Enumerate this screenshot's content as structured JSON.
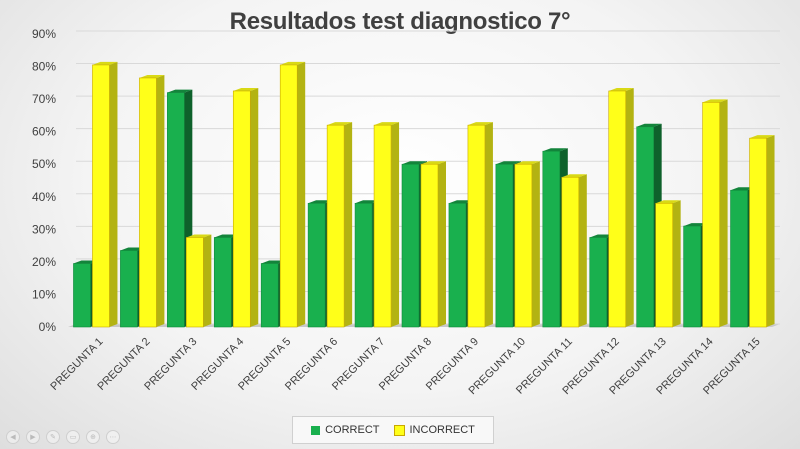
{
  "chart_data": {
    "type": "bar",
    "title": "Resultados test diagnostico 7°",
    "categories": [
      "PREGUNTA 1",
      "PREGUNTA 2",
      "PREGUNTA 3",
      "PREGUNTA 4",
      "PREGUNTA 5",
      "PREGUNTA 6",
      "PREGUNTA 7",
      "PREGUNTA 8",
      "PREGUNTA 9",
      "PREGUNTA 10",
      "PREGUNTA 11",
      "PREGUNTA 12",
      "PREGUNTA 13",
      "PREGUNTA 14",
      "PREGUNTA 15"
    ],
    "series": [
      {
        "name": "CORRECT",
        "color": "#19b04e",
        "values": [
          19.5,
          23.5,
          72,
          27.5,
          19.5,
          38,
          38,
          50,
          38,
          50,
          54,
          27.5,
          61.5,
          31,
          42
        ]
      },
      {
        "name": "INCORRECT",
        "color": "#ffff19",
        "values": [
          80.5,
          76.5,
          27.5,
          72.5,
          80.5,
          62,
          62,
          50,
          62,
          50,
          46,
          72.5,
          38,
          69,
          58
        ]
      }
    ],
    "y_ticks": [
      "0%",
      "10%",
      "20%",
      "30%",
      "40%",
      "50%",
      "60%",
      "70%",
      "80%",
      "90%"
    ],
    "ylim": [
      0,
      90
    ],
    "legend_position": "bottom",
    "grid": true
  },
  "controls": [
    "◀",
    "▶",
    "✎",
    "▭",
    "⊕",
    "⋯"
  ]
}
